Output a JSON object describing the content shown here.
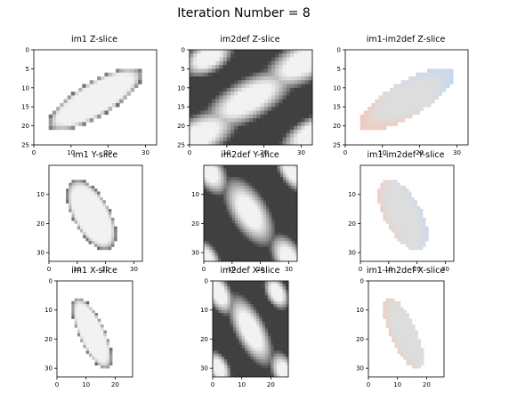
{
  "suptitle": "Iteration Number = 8",
  "chart_data": [
    {
      "type": "heatmap",
      "id": "p1",
      "title": "im1 Z-slice",
      "cmap": "gray",
      "content": "ellipse-diag",
      "xlim": [
        0,
        33
      ],
      "ylim": [
        25,
        0
      ],
      "xticks": [
        0,
        10,
        20,
        30
      ],
      "yticks": [
        0,
        5,
        10,
        15,
        20,
        25
      ]
    },
    {
      "type": "heatmap",
      "id": "p2",
      "title": "im2def Z-slice",
      "cmap": "gray",
      "content": "deformed-z",
      "xlim": [
        0,
        33
      ],
      "ylim": [
        25,
        0
      ],
      "xticks": [
        0,
        10,
        20,
        30
      ],
      "yticks": [
        0,
        5,
        10,
        15,
        20,
        25
      ]
    },
    {
      "type": "heatmap",
      "id": "p3",
      "title": "im1-im2def Z-slice",
      "cmap": "coolwarm",
      "content": "diff-ellipse-diag",
      "xlim": [
        0,
        33
      ],
      "ylim": [
        25,
        0
      ],
      "xticks": [
        0,
        10,
        20,
        30
      ],
      "yticks": [
        0,
        5,
        10,
        15,
        20,
        25
      ]
    },
    {
      "type": "heatmap",
      "id": "p4",
      "title": "im1 Y-slice",
      "cmap": "gray",
      "content": "ellipse-y",
      "xlim": [
        0,
        33
      ],
      "ylim": [
        33,
        0
      ],
      "xticks": [
        0,
        10,
        20,
        30
      ],
      "yticks": [
        10,
        20,
        30
      ]
    },
    {
      "type": "heatmap",
      "id": "p5",
      "title": "im2def Y-slice",
      "cmap": "gray",
      "content": "deformed-y",
      "xlim": [
        0,
        33
      ],
      "ylim": [
        33,
        0
      ],
      "xticks": [
        0,
        10,
        20,
        30
      ],
      "yticks": [
        10,
        20,
        30
      ]
    },
    {
      "type": "heatmap",
      "id": "p6",
      "title": "im1-im2def Y-slice",
      "cmap": "coolwarm",
      "content": "diff-ellipse-y",
      "xlim": [
        0,
        33
      ],
      "ylim": [
        33,
        0
      ],
      "xticks": [
        0,
        10,
        20,
        30
      ],
      "yticks": [
        10,
        20,
        30
      ]
    },
    {
      "type": "heatmap",
      "id": "p7",
      "title": "im1 X-slice",
      "cmap": "gray",
      "content": "ellipse-x",
      "xlim": [
        0,
        26
      ],
      "ylim": [
        33,
        0
      ],
      "xticks": [
        0,
        10,
        20
      ],
      "yticks": [
        0,
        10,
        20,
        30
      ]
    },
    {
      "type": "heatmap",
      "id": "p8",
      "title": "im2def X-slice",
      "cmap": "gray",
      "content": "deformed-x",
      "xlim": [
        0,
        26
      ],
      "ylim": [
        33,
        0
      ],
      "xticks": [
        0,
        10,
        20
      ],
      "yticks": [
        0,
        10,
        20,
        30
      ]
    },
    {
      "type": "heatmap",
      "id": "p9",
      "title": "im1-im2def X-slice",
      "cmap": "coolwarm",
      "content": "diff-ellipse-x",
      "xlim": [
        0,
        26
      ],
      "ylim": [
        33,
        0
      ],
      "xticks": [
        0,
        10,
        20
      ],
      "yticks": [
        0,
        10,
        20,
        30
      ]
    }
  ]
}
